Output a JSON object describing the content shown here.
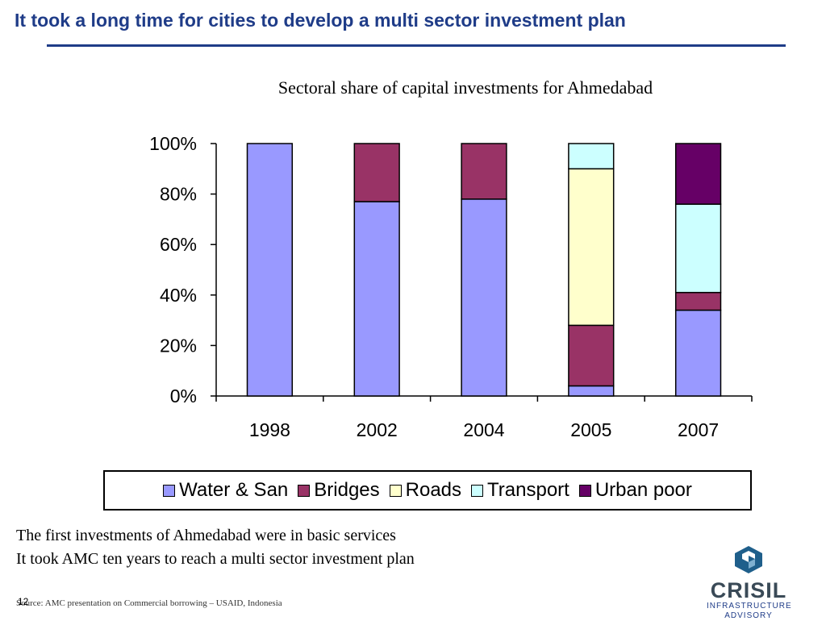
{
  "slide": {
    "title": "It took a long time for cities to develop a multi sector investment plan",
    "body_lines": [
      "The first investments of Ahmedabad were in basic services",
      "It took AMC ten years to reach a multi sector investment plan"
    ],
    "source": "Source: AMC presentation on Commercial borrowing – USAID, Indonesia",
    "page_number": "12",
    "logo": {
      "word": "CRISIL",
      "line1": "INFRASTRUCTURE",
      "line2": "ADVISORY"
    },
    "title_color": "#1f3c88"
  },
  "chart_data": {
    "type": "bar",
    "stacked": true,
    "title": "Sectoral share of capital investments for Ahmedabad",
    "categories": [
      "1998",
      "2002",
      "2004",
      "2005",
      "2007"
    ],
    "series": [
      {
        "name": "Water & San",
        "color": "#9999ff",
        "values": [
          100,
          77,
          78,
          4,
          34
        ]
      },
      {
        "name": "Bridges",
        "color": "#993366",
        "values": [
          0,
          23,
          22,
          24,
          7
        ]
      },
      {
        "name": "Roads",
        "color": "#ffffcc",
        "values": [
          0,
          0,
          0,
          62,
          0
        ]
      },
      {
        "name": "Transport",
        "color": "#ccffff",
        "values": [
          0,
          0,
          0,
          10,
          35
        ]
      },
      {
        "name": "Urban poor",
        "color": "#660066",
        "values": [
          0,
          0,
          0,
          0,
          24
        ]
      }
    ],
    "ylim": [
      0,
      100
    ],
    "yticks": [
      "0%",
      "20%",
      "40%",
      "60%",
      "80%",
      "100%"
    ],
    "xlabel": "",
    "ylabel": "",
    "grid": false,
    "legend_position": "bottom"
  }
}
